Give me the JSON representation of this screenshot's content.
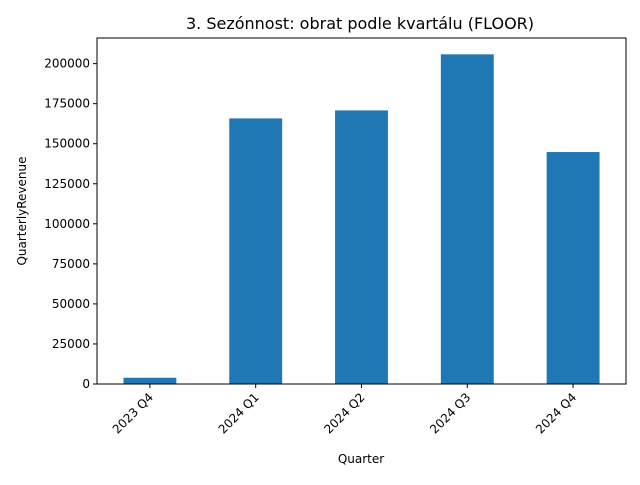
{
  "chart_data": {
    "type": "bar",
    "title": "3. Sezónnost: obrat podle kvartálu (FLOOR)",
    "xlabel": "Quarter",
    "ylabel": "QuarterlyRevenue",
    "categories": [
      "2023 Q4",
      "2024 Q1",
      "2024 Q2",
      "2024 Q3",
      "2024 Q4"
    ],
    "values": [
      3900,
      165800,
      170800,
      205800,
      144800
    ],
    "ylim": [
      0,
      216000
    ],
    "yticks": [
      0,
      25000,
      50000,
      75000,
      100000,
      125000,
      150000,
      175000,
      200000
    ],
    "ytick_labels": [
      "0",
      "25000",
      "50000",
      "75000",
      "100000",
      "125000",
      "150000",
      "175000",
      "200000"
    ],
    "grid": false,
    "bar_color": "#1f77b4"
  }
}
